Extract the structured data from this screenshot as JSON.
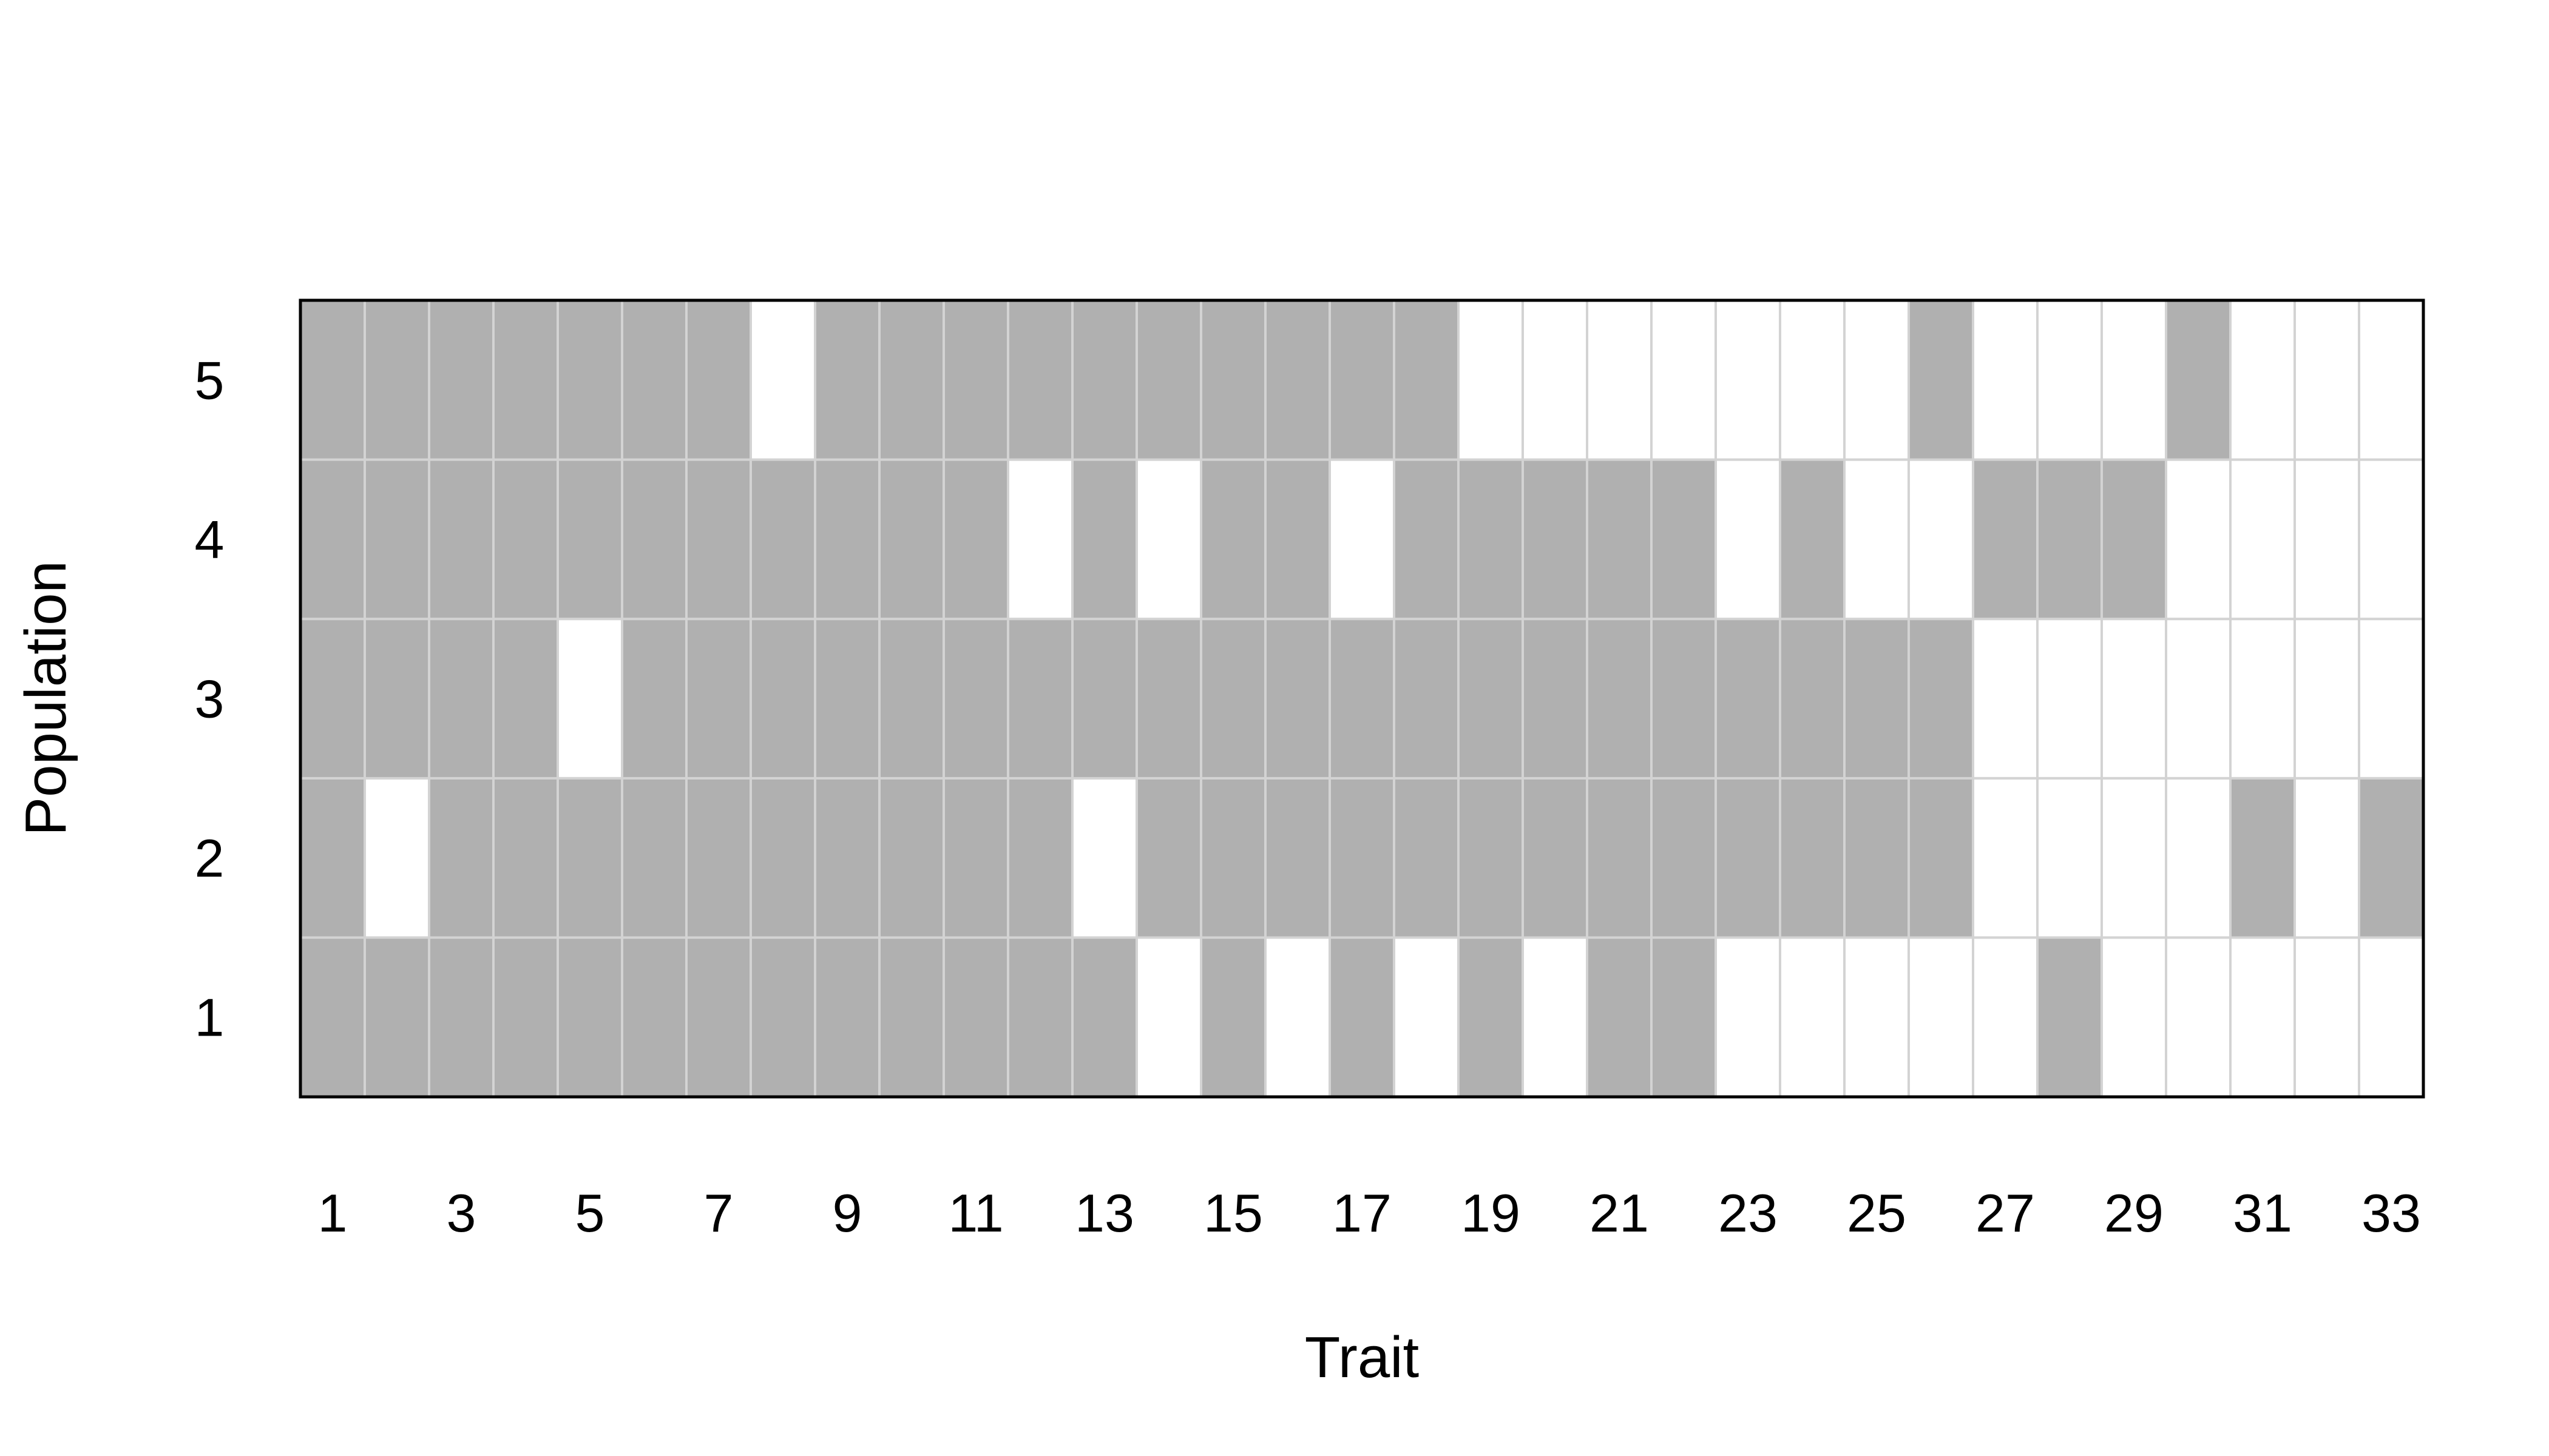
{
  "chart_data": {
    "type": "heatmap",
    "title": "",
    "xlabel": "Trait",
    "ylabel": "Population",
    "x_categories": [
      1,
      2,
      3,
      4,
      5,
      6,
      7,
      8,
      9,
      10,
      11,
      12,
      13,
      14,
      15,
      16,
      17,
      18,
      19,
      20,
      21,
      22,
      23,
      24,
      25,
      26,
      27,
      28,
      29,
      30,
      31,
      32,
      33
    ],
    "x_tick_labels": [
      "1",
      "3",
      "5",
      "7",
      "9",
      "11",
      "13",
      "15",
      "17",
      "19",
      "21",
      "23",
      "25",
      "27",
      "29",
      "31",
      "33"
    ],
    "y_categories": [
      1,
      2,
      3,
      4,
      5
    ],
    "y_tick_labels": [
      "1",
      "2",
      "3",
      "4",
      "5"
    ],
    "legend": "none",
    "grid": true,
    "colors": {
      "present": "#b0b0b0",
      "absent": "#ffffff",
      "gridline": "#d3d3d3",
      "border": "#000000"
    },
    "value_meaning": {
      "1": "present (gray)",
      "0": "absent (white)"
    },
    "matrix": [
      {
        "population": 1,
        "values": [
          1,
          1,
          1,
          1,
          1,
          1,
          1,
          1,
          1,
          1,
          1,
          1,
          1,
          0,
          1,
          0,
          1,
          0,
          1,
          0,
          1,
          1,
          0,
          0,
          0,
          0,
          0,
          1,
          0,
          0,
          0,
          0,
          0
        ]
      },
      {
        "population": 2,
        "values": [
          1,
          0,
          1,
          1,
          1,
          1,
          1,
          1,
          1,
          1,
          1,
          1,
          0,
          1,
          1,
          1,
          1,
          1,
          1,
          1,
          1,
          1,
          1,
          1,
          1,
          1,
          0,
          0,
          0,
          0,
          1,
          0,
          1
        ]
      },
      {
        "population": 3,
        "values": [
          1,
          1,
          1,
          1,
          0,
          1,
          1,
          1,
          1,
          1,
          1,
          1,
          1,
          1,
          1,
          1,
          1,
          1,
          1,
          1,
          1,
          1,
          1,
          1,
          1,
          1,
          0,
          0,
          0,
          0,
          0,
          0,
          0
        ]
      },
      {
        "population": 4,
        "values": [
          1,
          1,
          1,
          1,
          1,
          1,
          1,
          1,
          1,
          1,
          1,
          0,
          1,
          0,
          1,
          1,
          0,
          1,
          1,
          1,
          1,
          1,
          0,
          1,
          0,
          0,
          1,
          1,
          1,
          0,
          0,
          0,
          0
        ]
      },
      {
        "population": 5,
        "values": [
          1,
          1,
          1,
          1,
          1,
          1,
          1,
          0,
          1,
          1,
          1,
          1,
          1,
          1,
          1,
          1,
          1,
          1,
          0,
          0,
          0,
          0,
          0,
          0,
          0,
          1,
          0,
          0,
          0,
          1,
          0,
          0,
          0
        ]
      }
    ]
  }
}
